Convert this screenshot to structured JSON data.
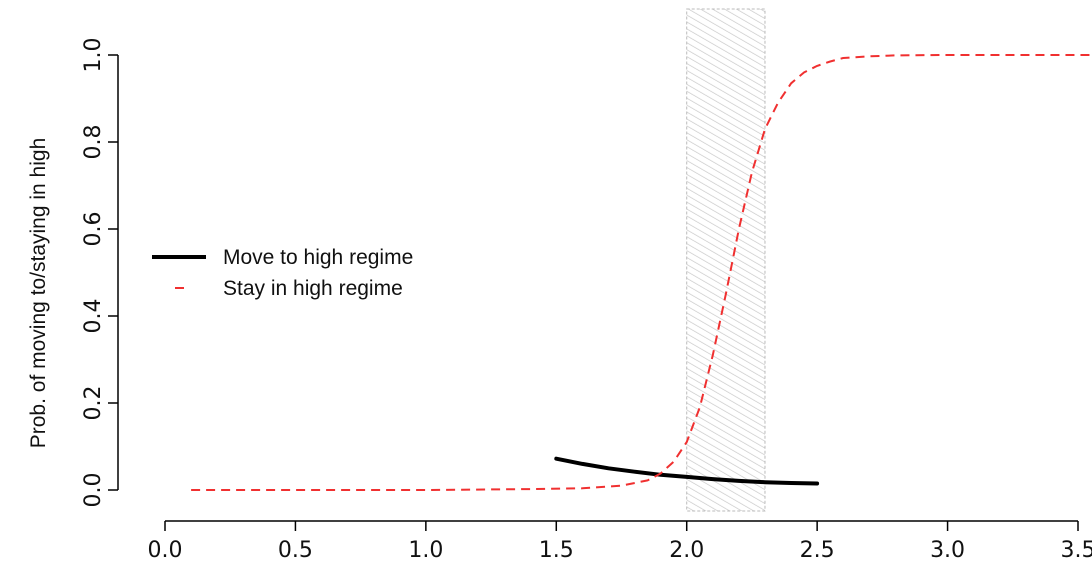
{
  "chart_data": {
    "type": "line",
    "title": "",
    "xlabel": "",
    "ylabel": "Prob. of moving to/staying in high",
    "xlim": [
      0.0,
      3.55
    ],
    "ylim": [
      0.0,
      1.0
    ],
    "x_ticks": [
      "0.0",
      "0.5",
      "1.0",
      "1.5",
      "2.0",
      "2.5",
      "3.0",
      "3.5"
    ],
    "y_ticks": [
      "0.0",
      "0.2",
      "0.4",
      "0.6",
      "0.8",
      "1.0"
    ],
    "grid": false,
    "legend_position": "middle-left",
    "shaded_band": {
      "x_from": 2.0,
      "x_to": 2.3
    },
    "series": [
      {
        "name": "Move to high regime",
        "style": "solid",
        "color": "#000000",
        "x": [
          1.5,
          1.6,
          1.7,
          1.8,
          1.9,
          2.0,
          2.1,
          2.2,
          2.3,
          2.4,
          2.5
        ],
        "y": [
          0.072,
          0.06,
          0.05,
          0.042,
          0.035,
          0.03,
          0.025,
          0.021,
          0.018,
          0.016,
          0.015
        ]
      },
      {
        "name": "Stay in high regime",
        "style": "dashed",
        "color": "#f03030",
        "x": [
          0.1,
          0.5,
          1.0,
          1.4,
          1.6,
          1.75,
          1.85,
          1.9,
          1.95,
          2.0,
          2.05,
          2.1,
          2.15,
          2.2,
          2.25,
          2.3,
          2.35,
          2.4,
          2.45,
          2.5,
          2.55,
          2.6,
          2.7,
          2.8,
          3.0,
          3.3,
          3.55
        ],
        "y": [
          0.0,
          0.0,
          0.0,
          0.002,
          0.004,
          0.01,
          0.022,
          0.038,
          0.065,
          0.11,
          0.19,
          0.31,
          0.45,
          0.6,
          0.73,
          0.83,
          0.89,
          0.935,
          0.96,
          0.975,
          0.985,
          0.993,
          0.997,
          0.999,
          1.0,
          1.0,
          1.0
        ]
      }
    ]
  }
}
